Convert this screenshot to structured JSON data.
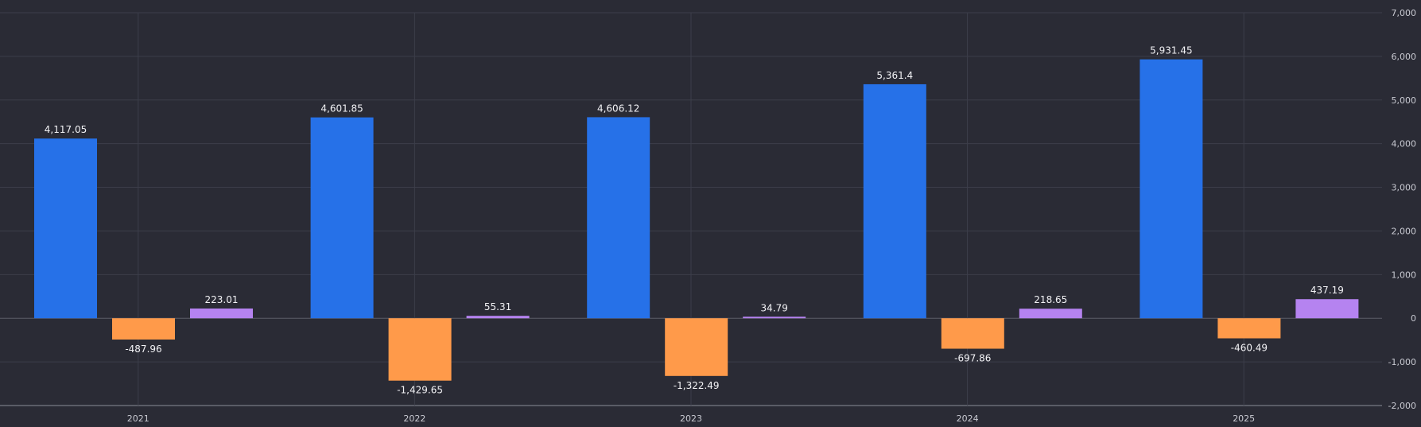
{
  "chart_data": {
    "type": "bar",
    "categories": [
      "2021",
      "2022",
      "2023",
      "2024",
      "2025"
    ],
    "series": [
      {
        "values": [
          4117.05,
          4601.85,
          4606.12,
          5361.4,
          5931.45
        ],
        "color": "#2671e8"
      },
      {
        "values": [
          -487.96,
          -1429.65,
          -1322.49,
          -697.86,
          -460.49
        ],
        "color": "#ff9a4a"
      },
      {
        "values": [
          223.01,
          55.31,
          34.79,
          218.65,
          437.19
        ],
        "color": "#b583f0"
      }
    ],
    "data_labels": [
      [
        "4,117.05",
        "4,601.85",
        "4,606.12",
        "5,361.4",
        "5,931.45"
      ],
      [
        "-487.96",
        "-1,429.65",
        "-1,322.49",
        "-697.86",
        "-460.49"
      ],
      [
        "223.01",
        "55.31",
        "34.79",
        "218.65",
        "437.19"
      ]
    ],
    "ylim": [
      -2000,
      7000
    ],
    "y_ticks": [
      7000,
      6000,
      5000,
      4000,
      3000,
      2000,
      1000,
      0,
      -1000,
      -2000
    ],
    "y_tick_labels": [
      "7,000",
      "6,000",
      "5,000",
      "4,000",
      "3,000",
      "2,000",
      "1,000",
      "0",
      "-1,000",
      "-2,000"
    ],
    "y_axis_side": "right",
    "grid": true,
    "title": "",
    "xlabel": "",
    "ylabel": ""
  }
}
